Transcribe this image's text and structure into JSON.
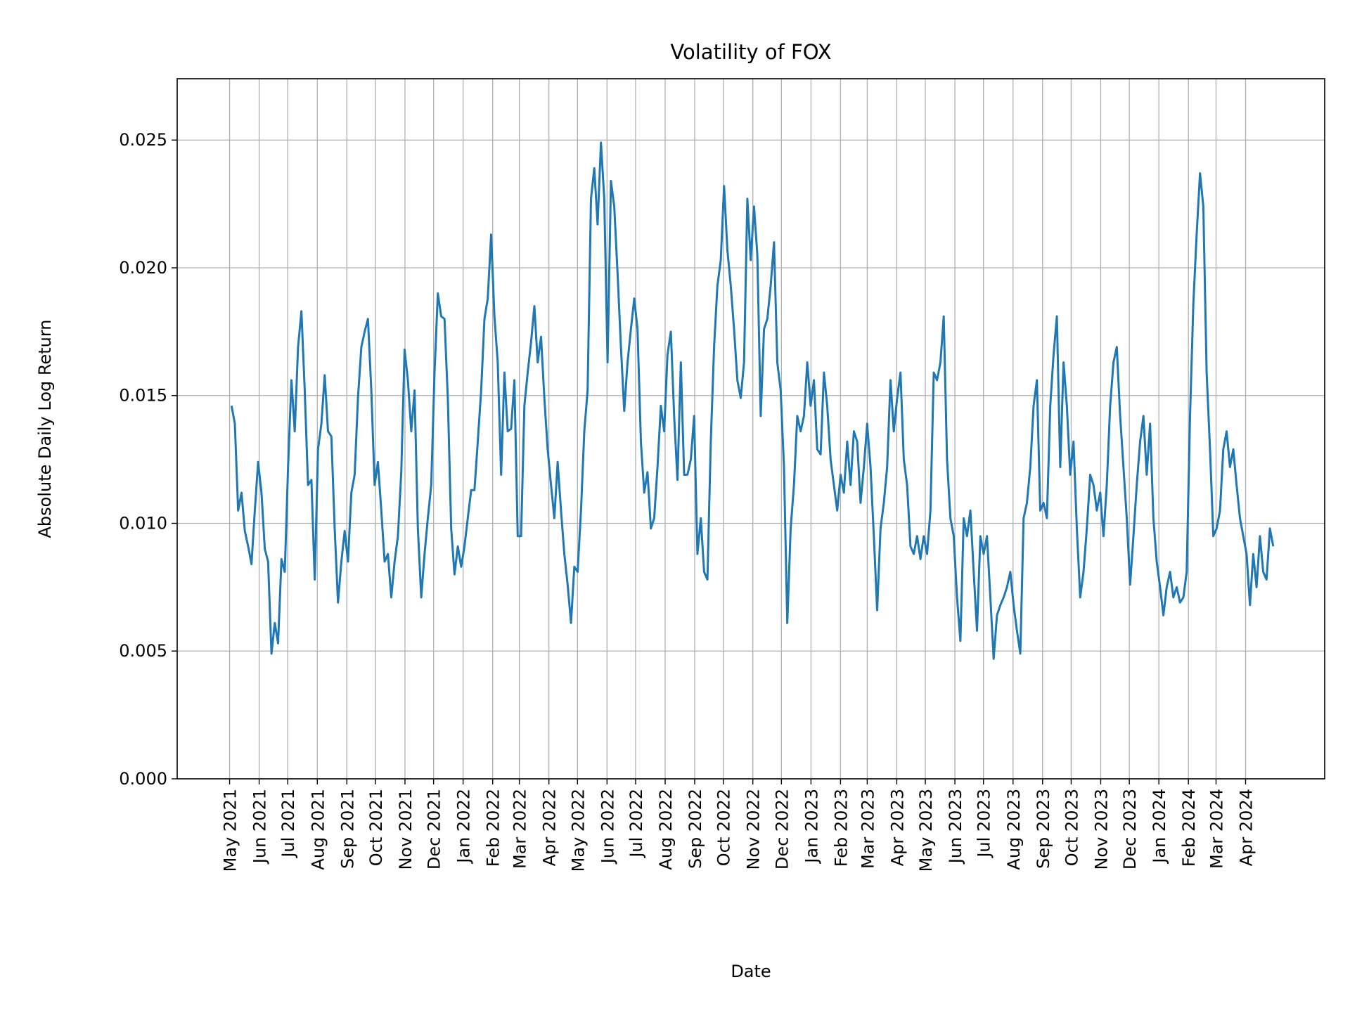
{
  "chart_data": {
    "type": "line",
    "title": "Volatility of FOX",
    "xlabel": "Date",
    "ylabel": "Absolute Daily Log Return",
    "xlim": [
      "2021-03-07",
      "2024-06-23"
    ],
    "ylim": [
      0,
      0.0274
    ],
    "grid": true,
    "line_color": "#1f77b4",
    "yticks": [
      0,
      0.005,
      0.01,
      0.015,
      0.02,
      0.025
    ],
    "ytick_labels": [
      "0.000",
      "0.005",
      "0.010",
      "0.015",
      "0.020",
      "0.025"
    ],
    "xticks": [
      "2021-05-01",
      "2021-06-01",
      "2021-07-01",
      "2021-08-01",
      "2021-09-01",
      "2021-10-01",
      "2021-11-01",
      "2021-12-01",
      "2022-01-01",
      "2022-02-01",
      "2022-03-01",
      "2022-04-01",
      "2022-05-01",
      "2022-06-01",
      "2022-07-01",
      "2022-08-01",
      "2022-09-01",
      "2022-10-01",
      "2022-11-01",
      "2022-12-01",
      "2023-01-01",
      "2023-02-01",
      "2023-03-01",
      "2023-04-01",
      "2023-05-01",
      "2023-06-01",
      "2023-07-01",
      "2023-08-01",
      "2023-09-01",
      "2023-10-01",
      "2023-11-01",
      "2023-12-01",
      "2024-01-01",
      "2024-02-01",
      "2024-03-01",
      "2024-04-01"
    ],
    "xtick_labels": [
      "May 2021",
      "Jun 2021",
      "Jul 2021",
      "Aug 2021",
      "Sep 2021",
      "Oct 2021",
      "Nov 2021",
      "Dec 2021",
      "Jan 2022",
      "Feb 2022",
      "Mar 2022",
      "Apr 2022",
      "May 2022",
      "Jun 2022",
      "Jul 2022",
      "Aug 2022",
      "Sep 2022",
      "Oct 2022",
      "Nov 2022",
      "Dec 2022",
      "Jan 2023",
      "Feb 2023",
      "Mar 2023",
      "Apr 2023",
      "May 2023",
      "Jun 2023",
      "Jul 2023",
      "Aug 2023",
      "Sep 2023",
      "Oct 2023",
      "Nov 2023",
      "Dec 2023",
      "Jan 2024",
      "Feb 2024",
      "Mar 2024",
      "Apr 2024"
    ],
    "series": [
      {
        "start_date": "2021-05-03",
        "end_date": "2024-04-30",
        "values": [
          0.0146,
          0.0139,
          0.0105,
          0.0112,
          0.0097,
          0.0091,
          0.0084,
          0.0105,
          0.0124,
          0.0112,
          0.009,
          0.0085,
          0.0049,
          0.0061,
          0.0053,
          0.0086,
          0.0081,
          0.0122,
          0.0156,
          0.0136,
          0.0169,
          0.0183,
          0.0152,
          0.0115,
          0.0117,
          0.0078,
          0.0129,
          0.0139,
          0.0158,
          0.0136,
          0.0134,
          0.0098,
          0.0069,
          0.0085,
          0.0097,
          0.0085,
          0.0112,
          0.0119,
          0.0149,
          0.0169,
          0.0175,
          0.018,
          0.0152,
          0.0115,
          0.0124,
          0.0105,
          0.0085,
          0.0088,
          0.0071,
          0.0085,
          0.0095,
          0.012,
          0.0168,
          0.0156,
          0.0136,
          0.0152,
          0.0098,
          0.0071,
          0.0088,
          0.0102,
          0.0115,
          0.0159,
          0.019,
          0.0181,
          0.018,
          0.0149,
          0.0098,
          0.008,
          0.0091,
          0.0083,
          0.0091,
          0.0102,
          0.0113,
          0.0113,
          0.0132,
          0.0152,
          0.018,
          0.0188,
          0.0213,
          0.0181,
          0.0163,
          0.0119,
          0.0159,
          0.0136,
          0.0137,
          0.0156,
          0.0095,
          0.0095,
          0.0146,
          0.0159,
          0.0171,
          0.0185,
          0.0163,
          0.0173,
          0.0149,
          0.0129,
          0.0115,
          0.0102,
          0.0124,
          0.0105,
          0.0088,
          0.0076,
          0.0061,
          0.0083,
          0.0081,
          0.0105,
          0.0136,
          0.0152,
          0.0227,
          0.0239,
          0.0217,
          0.0249,
          0.0227,
          0.0163,
          0.0234,
          0.0224,
          0.0198,
          0.0169,
          0.0144,
          0.0163,
          0.0176,
          0.0188,
          0.0176,
          0.0132,
          0.0112,
          0.012,
          0.0098,
          0.0102,
          0.0122,
          0.0146,
          0.0136,
          0.0166,
          0.0175,
          0.0142,
          0.0117,
          0.0163,
          0.0119,
          0.0119,
          0.0125,
          0.0142,
          0.0088,
          0.0102,
          0.0081,
          0.0078,
          0.0132,
          0.0169,
          0.0193,
          0.0203,
          0.0232,
          0.0207,
          0.0193,
          0.0176,
          0.0156,
          0.0149,
          0.0163,
          0.0227,
          0.0203,
          0.0224,
          0.0205,
          0.0142,
          0.0176,
          0.018,
          0.0193,
          0.021,
          0.0163,
          0.0152,
          0.0122,
          0.0061,
          0.0098,
          0.0115,
          0.0142,
          0.0136,
          0.0142,
          0.0163,
          0.0146,
          0.0156,
          0.0129,
          0.0127,
          0.0159,
          0.0146,
          0.0125,
          0.0115,
          0.0105,
          0.0119,
          0.0112,
          0.0132,
          0.0115,
          0.0136,
          0.0132,
          0.0108,
          0.0122,
          0.0139,
          0.0122,
          0.0095,
          0.0066,
          0.0098,
          0.0108,
          0.0122,
          0.0156,
          0.0136,
          0.0149,
          0.0159,
          0.0125,
          0.0115,
          0.0091,
          0.0088,
          0.0095,
          0.0086,
          0.0095,
          0.0088,
          0.0105,
          0.0159,
          0.0156,
          0.0163,
          0.0181,
          0.0125,
          0.0102,
          0.0095,
          0.0071,
          0.0054,
          0.0102,
          0.0095,
          0.0105,
          0.0081,
          0.0058,
          0.0095,
          0.0088,
          0.0095,
          0.0071,
          0.0047,
          0.0064,
          0.0068,
          0.0071,
          0.0075,
          0.0081,
          0.0068,
          0.0058,
          0.0049,
          0.0102,
          0.0108,
          0.0122,
          0.0146,
          0.0156,
          0.0105,
          0.0108,
          0.0102,
          0.0146,
          0.0166,
          0.0181,
          0.0122,
          0.0163,
          0.0146,
          0.0119,
          0.0132,
          0.0098,
          0.0071,
          0.0081,
          0.0098,
          0.0119,
          0.0115,
          0.0105,
          0.0112,
          0.0095,
          0.0115,
          0.0146,
          0.0163,
          0.0169,
          0.0142,
          0.0122,
          0.0102,
          0.0076,
          0.0095,
          0.0115,
          0.0132,
          0.0142,
          0.0119,
          0.0139,
          0.0102,
          0.0085,
          0.0075,
          0.0064,
          0.0075,
          0.0081,
          0.0071,
          0.0075,
          0.0069,
          0.0071,
          0.0081,
          0.0142,
          0.0186,
          0.0213,
          0.0237,
          0.0224,
          0.0159,
          0.0129,
          0.0095,
          0.0098,
          0.0105,
          0.0129,
          0.0136,
          0.0122,
          0.0129,
          0.0115,
          0.0102,
          0.0095,
          0.0088,
          0.0068,
          0.0088,
          0.0075,
          0.0095,
          0.0081,
          0.0078,
          0.0098,
          0.0091
        ]
      }
    ]
  }
}
